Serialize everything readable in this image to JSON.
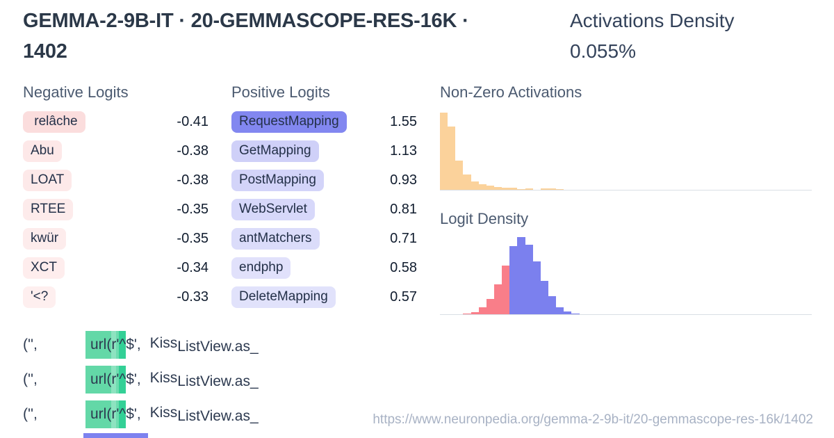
{
  "header": {
    "title_line1": "GEMMA-2-9B-IT · 20-GEMMASCOPE-RES-16K ·",
    "title_line2": "1402",
    "density_label": "Activations Density",
    "density_value": "0.055%"
  },
  "negative_logits": {
    "heading": "Negative Logits",
    "items": [
      {
        "token": " relâche",
        "value": "-0.41",
        "bg": "#fbdddd"
      },
      {
        "token": "Abu",
        "value": "-0.38",
        "bg": "#fde8e8"
      },
      {
        "token": "LOAT",
        "value": "-0.38",
        "bg": "#fde9e9"
      },
      {
        "token": "RTEE",
        "value": "-0.35",
        "bg": "#fdebeb"
      },
      {
        "token": "kwür",
        "value": "-0.35",
        "bg": "#fdecec"
      },
      {
        "token": "XCT",
        "value": "-0.34",
        "bg": "#feeded"
      },
      {
        "token": "'<?",
        "value": "-0.33",
        "bg": "#feefef"
      }
    ]
  },
  "positive_logits": {
    "heading": "Positive Logits",
    "items": [
      {
        "token": "RequestMapping",
        "value": "1.55",
        "bg": "#8287f0"
      },
      {
        "token": "GetMapping",
        "value": "1.13",
        "bg": "#cfd0f8"
      },
      {
        "token": "PostMapping",
        "value": "0.93",
        "bg": "#d3d4f9"
      },
      {
        "token": "WebServlet",
        "value": "0.81",
        "bg": "#d7d8fa"
      },
      {
        "token": "antMatchers",
        "value": "0.71",
        "bg": "#dbdcfa"
      },
      {
        "token": "endphp",
        "value": "0.58",
        "bg": "#e1e1fb"
      },
      {
        "token": "DeleteMapping",
        "value": "0.57",
        "bg": "#e1e2fb"
      }
    ]
  },
  "chart_data": [
    {
      "type": "bar",
      "title": "Non-Zero Activations",
      "xlabel": "",
      "ylabel": "",
      "axes_labeled": false,
      "grid": false,
      "legend": "none",
      "bar_color": "#fbd29b",
      "n_bins": 48,
      "bins": [
        1.0,
        0.82,
        0.38,
        0.2,
        0.11,
        0.073,
        0.05,
        0.036,
        0.027,
        0.023,
        0.012,
        0.018,
        0,
        0.016,
        0.016,
        0.008,
        0,
        0,
        0,
        0,
        0,
        0,
        0,
        0,
        0,
        0,
        0,
        0,
        0,
        0,
        0,
        0,
        0,
        0,
        0,
        0,
        0,
        0,
        0,
        0,
        0,
        0,
        0,
        0,
        0,
        0,
        0,
        0
      ]
    },
    {
      "type": "bar",
      "title": "Logit Density",
      "xlabel": "",
      "ylabel": "",
      "axes_labeled": false,
      "grid": false,
      "legend": "none",
      "n_bins": 48,
      "series": [
        {
          "name": "negative-logits",
          "color": "#f97e89",
          "start_bin": 3,
          "bins": [
            0.012,
            0.03,
            0.09,
            0.2,
            0.385,
            0.63
          ]
        },
        {
          "name": "positive-logits",
          "color": "#7b80ee",
          "start_bin": 9,
          "bins": [
            0.88,
            1.0,
            0.905,
            0.685,
            0.435,
            0.23,
            0.093,
            0.04,
            0.012
          ]
        }
      ]
    }
  ],
  "examples": {
    "rows": [
      {
        "prefix": "('',",
        "segments": [
          {
            "text": "url(",
            "bg": "#63d8a7"
          },
          {
            "text": "r",
            "bg": "#8de3c0"
          },
          {
            "text": "'",
            "bg": "#6edcb0"
          },
          {
            "text": "^",
            "bg": "#33d096"
          }
        ],
        "after": "$', ",
        "tail1": "Kiss",
        "tail2": "ListView.as_"
      },
      {
        "prefix": "('',",
        "segments": [
          {
            "text": "url(",
            "bg": "#63d8a7"
          },
          {
            "text": "r",
            "bg": "#8de3c0"
          },
          {
            "text": "'",
            "bg": "#6edcb0"
          },
          {
            "text": "^",
            "bg": "#33d096"
          }
        ],
        "after": "$', ",
        "tail1": "Kiss",
        "tail2": "ListView.as_"
      },
      {
        "prefix": "('',",
        "segments": [
          {
            "text": "url(",
            "bg": "#63d8a7"
          },
          {
            "text": "r",
            "bg": "#8de3c0"
          },
          {
            "text": "'",
            "bg": "#6edcb0"
          },
          {
            "text": "^",
            "bg": "#33d096"
          }
        ],
        "after": "$', ",
        "tail1": "Kiss",
        "tail2": "ListView.as_"
      }
    ]
  },
  "footer": {
    "url": "https://www.neuronpedia.org/gemma-2-9b-it/20-gemmascope-res-16k/1402"
  }
}
